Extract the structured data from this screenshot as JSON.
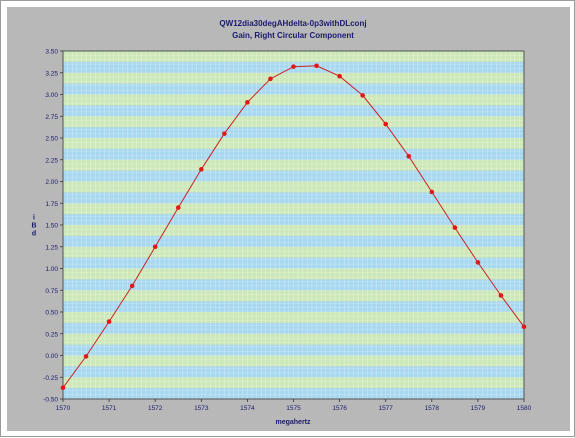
{
  "chart_data": {
    "type": "line",
    "title": "QW12dia30degAHdelta-0p3withDLconj",
    "subtitle": "Gain, Right Circular Component",
    "xlabel": "megahertz",
    "ylabel": "dBi",
    "xlim": [
      1570,
      1580
    ],
    "ylim": [
      -0.5,
      3.5
    ],
    "x_ticks": [
      "1570",
      "1571",
      "1572",
      "1573",
      "1574",
      "1575",
      "1576",
      "1577",
      "1578",
      "1579",
      "1580"
    ],
    "y_ticks": [
      "-0.50",
      "-0.25",
      "0.00",
      "0.25",
      "0.50",
      "0.75",
      "1.00",
      "1.25",
      "1.50",
      "1.75",
      "2.00",
      "2.25",
      "2.50",
      "2.75",
      "3.00",
      "3.25",
      "3.50"
    ],
    "grid": true,
    "legend": "none",
    "series": [
      {
        "color": "#cc2222",
        "x": [
          1570,
          1570.5,
          1571,
          1571.5,
          1572,
          1572.5,
          1573,
          1573.5,
          1574,
          1574.5,
          1575,
          1575.5,
          1576,
          1576.5,
          1577,
          1577.5,
          1578,
          1578.5,
          1579,
          1579.5,
          1580
        ],
        "y": [
          -0.37,
          -0.01,
          0.39,
          0.8,
          1.25,
          1.7,
          2.14,
          2.55,
          2.91,
          3.18,
          3.32,
          3.33,
          3.21,
          2.99,
          2.66,
          2.29,
          1.88,
          1.47,
          1.07,
          0.69,
          0.33
        ]
      }
    ],
    "colors": {
      "band_blue": "#a8d8f0",
      "band_green": "#cde8b8",
      "text_navy": "#1a1a6e",
      "line": "#cc2222",
      "marker": "#e01818"
    }
  }
}
